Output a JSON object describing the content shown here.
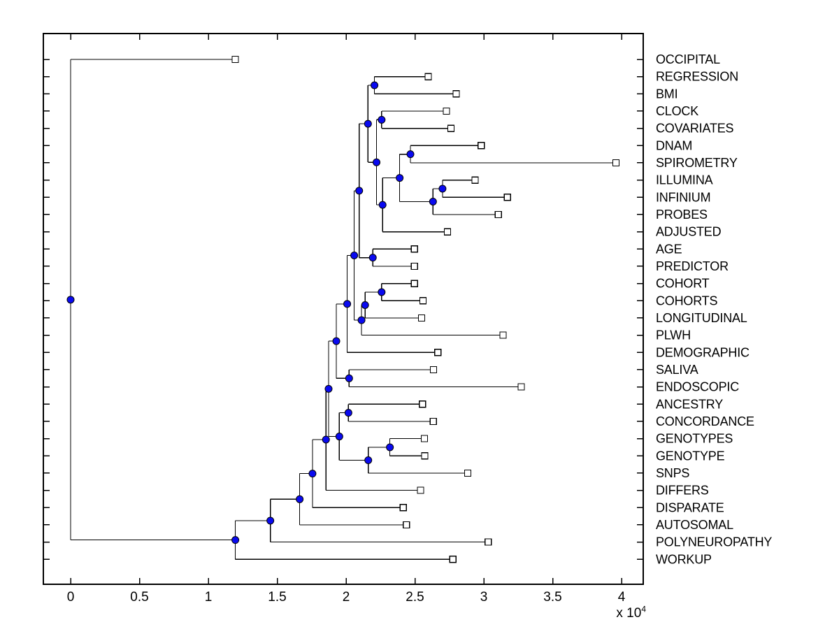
{
  "figure": {
    "background": "#FFFFFF",
    "plot_border_color": "#000000"
  },
  "chart_data": {
    "type": "dendrogram",
    "orientation": "left-to-right",
    "title": "",
    "x_axis": {
      "ticks": [
        0,
        0.5,
        1,
        1.5,
        2,
        2.5,
        3,
        3.5,
        4
      ],
      "tick_labels": [
        "0",
        "0.5",
        "1",
        "1.5",
        "2",
        "2.5",
        "3",
        "3.5",
        "4"
      ],
      "exponent_label": "x 10",
      "exponent_power": "4",
      "unit_multiplier": 10000,
      "xlim": [
        -0.2,
        4.16
      ],
      "grid": false
    },
    "styles": {
      "branch_color": "#000000",
      "branch_dot_fill": "#0A0AF0",
      "marker_edge_color": "#000000",
      "leaf_marker_fill": "#FFFFFF"
    },
    "leaves": [
      {
        "label": "OCCIPITAL",
        "x": 1.196
      },
      {
        "label": "REGRESSION",
        "x": 2.597
      },
      {
        "label": "BMI",
        "x": 2.799
      },
      {
        "label": "CLOCK",
        "x": 2.729
      },
      {
        "label": "COVARIATES",
        "x": 2.761
      },
      {
        "label": "DNAM",
        "x": 2.981
      },
      {
        "label": "SPIROMETRY",
        "x": 3.959
      },
      {
        "label": "ILLUMINA",
        "x": 2.936
      },
      {
        "label": "INFINIUM",
        "x": 3.171
      },
      {
        "label": "PROBES",
        "x": 3.105
      },
      {
        "label": "ADJUSTED",
        "x": 2.736
      },
      {
        "label": "AGE",
        "x": 2.496
      },
      {
        "label": "PREDICTOR",
        "x": 2.496
      },
      {
        "label": "COHORT",
        "x": 2.496
      },
      {
        "label": "COHORTS",
        "x": 2.558
      },
      {
        "label": "LONGITUDINAL",
        "x": 2.548
      },
      {
        "label": "PLWH",
        "x": 3.139
      },
      {
        "label": "DEMOGRAPHIC",
        "x": 2.666
      },
      {
        "label": "SALIVA",
        "x": 2.635
      },
      {
        "label": "ENDOSCOPIC",
        "x": 3.272
      },
      {
        "label": "ANCESTRY",
        "x": 2.555
      },
      {
        "label": "CONCORDANCE",
        "x": 2.633
      },
      {
        "label": "GENOTYPES",
        "x": 2.568
      },
      {
        "label": "GENOTYPE",
        "x": 2.571
      },
      {
        "label": "SNPS",
        "x": 2.883
      },
      {
        "label": "DIFFERS",
        "x": 2.54
      },
      {
        "label": "DISPARATE",
        "x": 2.415
      },
      {
        "label": "AUTOSOMAL",
        "x": 2.438
      },
      {
        "label": "POLYNEUROPATHY",
        "x": 3.032
      },
      {
        "label": "WORKUP",
        "x": 2.775
      }
    ],
    "root_id": "ROOT",
    "internal_nodes": [
      {
        "id": "ROOT",
        "x": 0.0,
        "children": [
          "L0",
          "A"
        ]
      },
      {
        "id": "A",
        "x": 1.196,
        "children": [
          "B",
          "L29"
        ]
      },
      {
        "id": "B",
        "x": 1.45,
        "children": [
          "C",
          "L28"
        ]
      },
      {
        "id": "C",
        "x": 1.663,
        "children": [
          "D",
          "L27"
        ]
      },
      {
        "id": "D",
        "x": 1.756,
        "children": [
          "E",
          "L26"
        ]
      },
      {
        "id": "E",
        "x": 1.854,
        "children": [
          "V",
          "L25"
        ]
      },
      {
        "id": "V",
        "x": 1.873,
        "children": [
          "W",
          "F"
        ]
      },
      {
        "id": "W",
        "x": 1.929,
        "children": [
          "N2",
          "S"
        ]
      },
      {
        "id": "N2",
        "x": 2.008,
        "children": [
          "P",
          "L17"
        ]
      },
      {
        "id": "P",
        "x": 2.059,
        "children": [
          "A1",
          "PL"
        ]
      },
      {
        "id": "A1",
        "x": 2.095,
        "children": [
          "X1",
          "Q"
        ]
      },
      {
        "id": "X1",
        "x": 2.159,
        "children": [
          "RB",
          "X2"
        ]
      },
      {
        "id": "RB",
        "x": 2.206,
        "children": [
          "L1",
          "L2"
        ]
      },
      {
        "id": "X2",
        "x": 2.221,
        "children": [
          "CC",
          "T"
        ]
      },
      {
        "id": "CC",
        "x": 2.258,
        "children": [
          "L3",
          "L4"
        ]
      },
      {
        "id": "T",
        "x": 2.265,
        "children": [
          "X3",
          "L10"
        ]
      },
      {
        "id": "X3",
        "x": 2.389,
        "children": [
          "DS",
          "X4"
        ]
      },
      {
        "id": "DS",
        "x": 2.467,
        "children": [
          "L5",
          "L6"
        ]
      },
      {
        "id": "X4",
        "x": 2.631,
        "children": [
          "X5",
          "L9"
        ]
      },
      {
        "id": "X5",
        "x": 2.7,
        "children": [
          "L7",
          "L8"
        ]
      },
      {
        "id": "Q",
        "x": 2.194,
        "children": [
          "L11",
          "L12"
        ]
      },
      {
        "id": "PL",
        "x": 2.112,
        "children": [
          "X6",
          "L16"
        ]
      },
      {
        "id": "X6",
        "x": 2.138,
        "children": [
          "CH",
          "L15"
        ]
      },
      {
        "id": "CH",
        "x": 2.258,
        "children": [
          "L13",
          "L14"
        ]
      },
      {
        "id": "S",
        "x": 2.022,
        "children": [
          "L18",
          "L19"
        ]
      },
      {
        "id": "F",
        "x": 1.951,
        "children": [
          "AC",
          "G"
        ]
      },
      {
        "id": "AC",
        "x": 2.017,
        "children": [
          "L20",
          "L21"
        ]
      },
      {
        "id": "G",
        "x": 2.161,
        "children": [
          "H",
          "L24"
        ]
      },
      {
        "id": "H",
        "x": 2.318,
        "children": [
          "L22",
          "L23"
        ]
      }
    ]
  }
}
